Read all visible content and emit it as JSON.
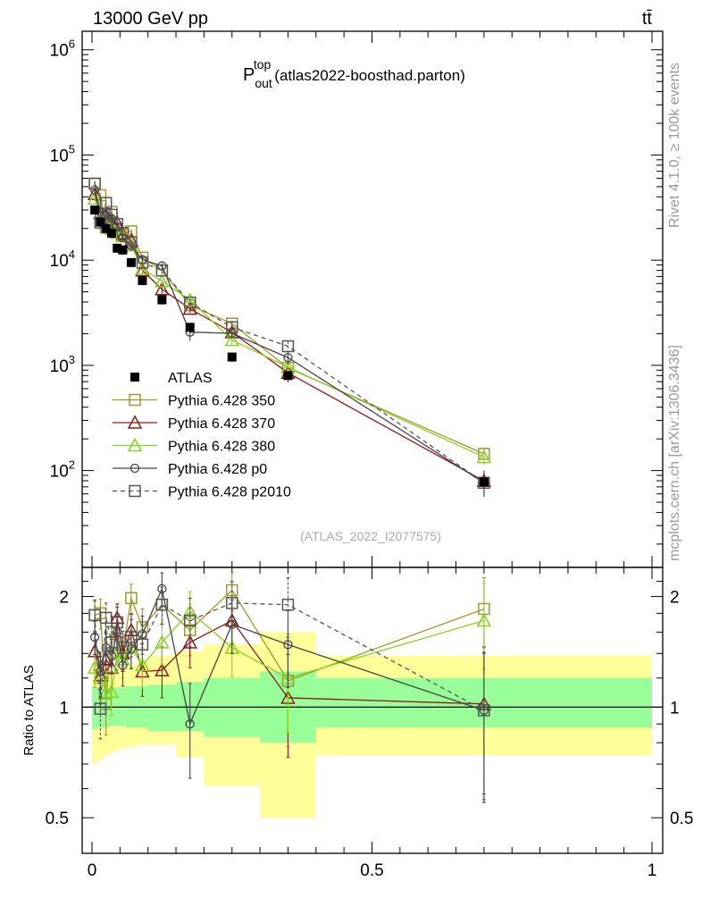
{
  "header": {
    "left": "13000 GeV pp",
    "right": "tt̄"
  },
  "side_labels": {
    "rivet": "Rivet 4.1.0, ≥ 100k events",
    "mcplots": "mcplots.cern.ch [arXiv:1306.3436]"
  },
  "chart_data": {
    "type": "scatter",
    "title_main": "P",
    "title_sup": "top",
    "title_sub": "out",
    "title_rest": "(atlas2022-boosthad.parton)",
    "watermark": "(ATLAS_2022_I2077575)",
    "x_ticks": [
      {
        "v": 0,
        "label": "0"
      },
      {
        "v": 0.5,
        "label": "0.5"
      },
      {
        "v": 1,
        "label": "1"
      }
    ],
    "upper": {
      "yscale": "log",
      "ylim": [
        12,
        1500000
      ],
      "y_ticks": [
        {
          "v": 100,
          "base": "10",
          "exp": "2"
        },
        {
          "v": 1000,
          "base": "10",
          "exp": "3"
        },
        {
          "v": 10000,
          "base": "10",
          "exp": "4"
        },
        {
          "v": 100000,
          "base": "10",
          "exp": "5"
        },
        {
          "v": 1000000,
          "base": "10",
          "exp": "6"
        }
      ]
    },
    "lower": {
      "ylabel": "Ratio to ATLAS",
      "yscale": "log",
      "ylim": [
        0.4,
        2.4
      ],
      "y_ticks": [
        {
          "v": 0.5,
          "label": "0.5"
        },
        {
          "v": 1,
          "label": "1"
        },
        {
          "v": 2,
          "label": "2"
        }
      ]
    },
    "bins": [
      0,
      0.01,
      0.02,
      0.03,
      0.04,
      0.05,
      0.06,
      0.08,
      0.1,
      0.15,
      0.2,
      0.3,
      0.4,
      1.0
    ],
    "x": [
      0.005,
      0.015,
      0.025,
      0.035,
      0.045,
      0.055,
      0.07,
      0.09,
      0.125,
      0.175,
      0.25,
      0.35,
      0.7
    ],
    "atlas": {
      "name": "ATLAS",
      "values": [
        30000,
        23000,
        20000,
        18000,
        13000,
        12500,
        9500,
        6400,
        4200,
        2300,
        1200,
        800,
        78
      ],
      "band_green": [
        [
          0.87,
          1.14
        ],
        [
          0.88,
          1.12
        ],
        [
          0.88,
          1.12
        ],
        [
          0.89,
          1.12
        ],
        [
          0.89,
          1.13
        ],
        [
          0.89,
          1.13
        ],
        [
          0.88,
          1.14
        ],
        [
          0.88,
          1.14
        ],
        [
          0.86,
          1.15
        ],
        [
          0.86,
          1.17
        ],
        [
          0.83,
          1.2
        ],
        [
          0.8,
          1.25
        ],
        [
          0.88,
          1.2
        ]
      ],
      "band_yellow": [
        [
          0.7,
          1.3
        ],
        [
          0.72,
          1.28
        ],
        [
          0.74,
          1.27
        ],
        [
          0.75,
          1.26
        ],
        [
          0.76,
          1.27
        ],
        [
          0.77,
          1.27
        ],
        [
          0.78,
          1.3
        ],
        [
          0.79,
          1.33
        ],
        [
          0.79,
          1.38
        ],
        [
          0.73,
          1.42
        ],
        [
          0.61,
          1.48
        ],
        [
          0.5,
          1.6
        ],
        [
          0.74,
          1.38
        ]
      ]
    },
    "series": [
      {
        "name": "Pythia 6.428 350",
        "color": "#9a9a2e",
        "marker": "square-open",
        "dash": false,
        "ratio": [
          1.78,
          1.8,
          1.02,
          1.6,
          1.5,
          1.42,
          1.98,
          1.65,
          1.9,
          1.62,
          2.08,
          1.18,
          1.85
        ],
        "rerr": [
          0.18,
          0.17,
          0.18,
          0.17,
          0.17,
          0.16,
          0.18,
          0.2,
          0.22,
          0.24,
          0.25,
          0.4,
          0.4
        ]
      },
      {
        "name": "Pythia 6.428 370",
        "color": "#8b1a1a",
        "marker": "triangle-open",
        "dash": false,
        "ratio": [
          1.42,
          1.22,
          1.35,
          1.28,
          1.75,
          1.4,
          1.62,
          1.25,
          1.26,
          1.5,
          1.72,
          1.06,
          1.02
        ],
        "rerr": [
          0.16,
          0.15,
          0.15,
          0.15,
          0.16,
          0.15,
          0.17,
          0.18,
          0.2,
          0.22,
          0.24,
          0.33,
          0.44
        ]
      },
      {
        "name": "Pythia 6.428 380",
        "color": "#8ad020",
        "marker": "triangle-open",
        "dash": false,
        "ratio": [
          1.28,
          1.2,
          1.1,
          1.1,
          1.4,
          1.35,
          1.45,
          1.3,
          1.5,
          1.82,
          1.45,
          1.2,
          1.72
        ],
        "rerr": [
          0.15,
          0.14,
          0.15,
          0.15,
          0.16,
          0.15,
          0.17,
          0.18,
          0.2,
          0.24,
          0.24,
          0.35,
          0.45
        ]
      },
      {
        "name": "Pythia 6.428 p0",
        "color": "#444444",
        "marker": "circle-open",
        "dash": false,
        "ratio": [
          1.55,
          1.25,
          1.45,
          1.38,
          1.6,
          1.3,
          1.44,
          1.58,
          2.1,
          0.9,
          1.68,
          1.48,
          0.98
        ],
        "rerr": [
          0.16,
          0.16,
          0.15,
          0.15,
          0.17,
          0.16,
          0.17,
          0.19,
          0.22,
          0.26,
          0.28,
          0.35,
          0.43
        ]
      },
      {
        "name": "Pythia 6.428 p2010",
        "color": "#555555",
        "marker": "square-open",
        "dash": true,
        "ratio": [
          1.78,
          0.99,
          1.75,
          1.5,
          1.7,
          1.45,
          1.55,
          1.48,
          1.9,
          1.72,
          1.92,
          1.9,
          0.98
        ],
        "rerr": [
          0.17,
          0.17,
          0.17,
          0.16,
          0.17,
          0.16,
          0.18,
          0.19,
          0.22,
          0.26,
          0.28,
          0.35,
          0.42
        ]
      }
    ]
  }
}
